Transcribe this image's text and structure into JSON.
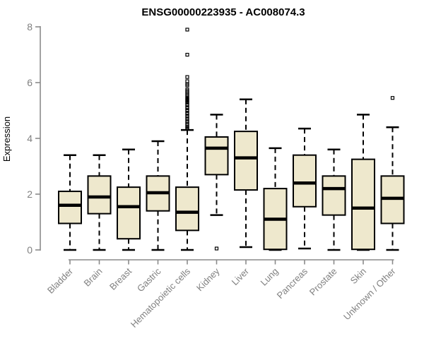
{
  "chart_data": {
    "type": "boxplot",
    "title": "ENSG00000223935 - AC008074.3",
    "ylabel": "Expression",
    "xlabel": "",
    "ylim": [
      0,
      8
    ],
    "yticks": [
      0,
      2,
      4,
      6,
      8
    ],
    "legend": "none",
    "grid": false,
    "categories": [
      "Bladder",
      "Brain",
      "Breast",
      "Gastric",
      "Hematopoietic cells",
      "Kidney",
      "Liver",
      "Lung",
      "Pancreas",
      "Prostate",
      "Skin",
      "Unknown / Other"
    ],
    "series": [
      {
        "name": "Bladder",
        "low": 0,
        "q1": 0.95,
        "median": 1.6,
        "q3": 2.1,
        "high": 3.4,
        "outliers": []
      },
      {
        "name": "Brain",
        "low": 0,
        "q1": 1.3,
        "median": 1.9,
        "q3": 2.65,
        "high": 3.4,
        "outliers": []
      },
      {
        "name": "Breast",
        "low": 0,
        "q1": 0.4,
        "median": 1.55,
        "q3": 2.25,
        "high": 3.6,
        "outliers": []
      },
      {
        "name": "Gastric",
        "low": 0,
        "q1": 1.4,
        "median": 2.05,
        "q3": 2.65,
        "high": 3.9,
        "outliers": []
      },
      {
        "name": "Hematopoietic cells",
        "low": 0,
        "q1": 0.7,
        "median": 1.35,
        "q3": 2.25,
        "high": 4.3,
        "outliers": [
          7.9,
          7.0,
          6.2,
          6.05,
          5.95,
          5.9,
          5.75,
          5.7,
          5.65,
          5.6,
          5.55,
          5.5,
          5.45,
          5.42,
          5.38,
          5.35,
          5.3,
          5.28,
          5.22,
          5.18,
          5.12,
          5.08,
          5.02,
          4.98,
          4.92,
          4.88,
          4.82,
          4.78,
          4.72,
          4.68,
          4.62,
          4.58,
          4.52,
          4.48,
          4.42,
          4.38,
          4.35
        ]
      },
      {
        "name": "Kidney",
        "low": 1.25,
        "q1": 2.7,
        "median": 3.65,
        "q3": 4.05,
        "high": 4.85,
        "outliers": [
          0.05
        ]
      },
      {
        "name": "Liver",
        "low": 0.1,
        "q1": 2.15,
        "median": 3.3,
        "q3": 4.25,
        "high": 5.4,
        "outliers": []
      },
      {
        "name": "Lung",
        "low": 0,
        "q1": 0.02,
        "median": 1.1,
        "q3": 2.2,
        "high": 3.65,
        "outliers": []
      },
      {
        "name": "Pancreas",
        "low": 0.05,
        "q1": 1.55,
        "median": 2.4,
        "q3": 3.4,
        "high": 4.35,
        "outliers": []
      },
      {
        "name": "Prostate",
        "low": 0,
        "q1": 1.25,
        "median": 2.2,
        "q3": 2.65,
        "high": 3.6,
        "outliers": []
      },
      {
        "name": "Skin",
        "low": 0,
        "q1": 0.02,
        "median": 1.5,
        "q3": 3.25,
        "high": 4.85,
        "outliers": []
      },
      {
        "name": "Unknown / Other",
        "low": 0,
        "q1": 0.95,
        "median": 1.85,
        "q3": 2.65,
        "high": 4.4,
        "outliers": [
          5.45
        ]
      }
    ],
    "colors": {
      "box_fill": "#EEE8CD",
      "box_stroke": "#000000",
      "median": "#000000",
      "whisker": "#000000",
      "axis": "#8a8a8a",
      "tick_label": "#808080",
      "title": "#000000",
      "background": "#ffffff"
    }
  }
}
